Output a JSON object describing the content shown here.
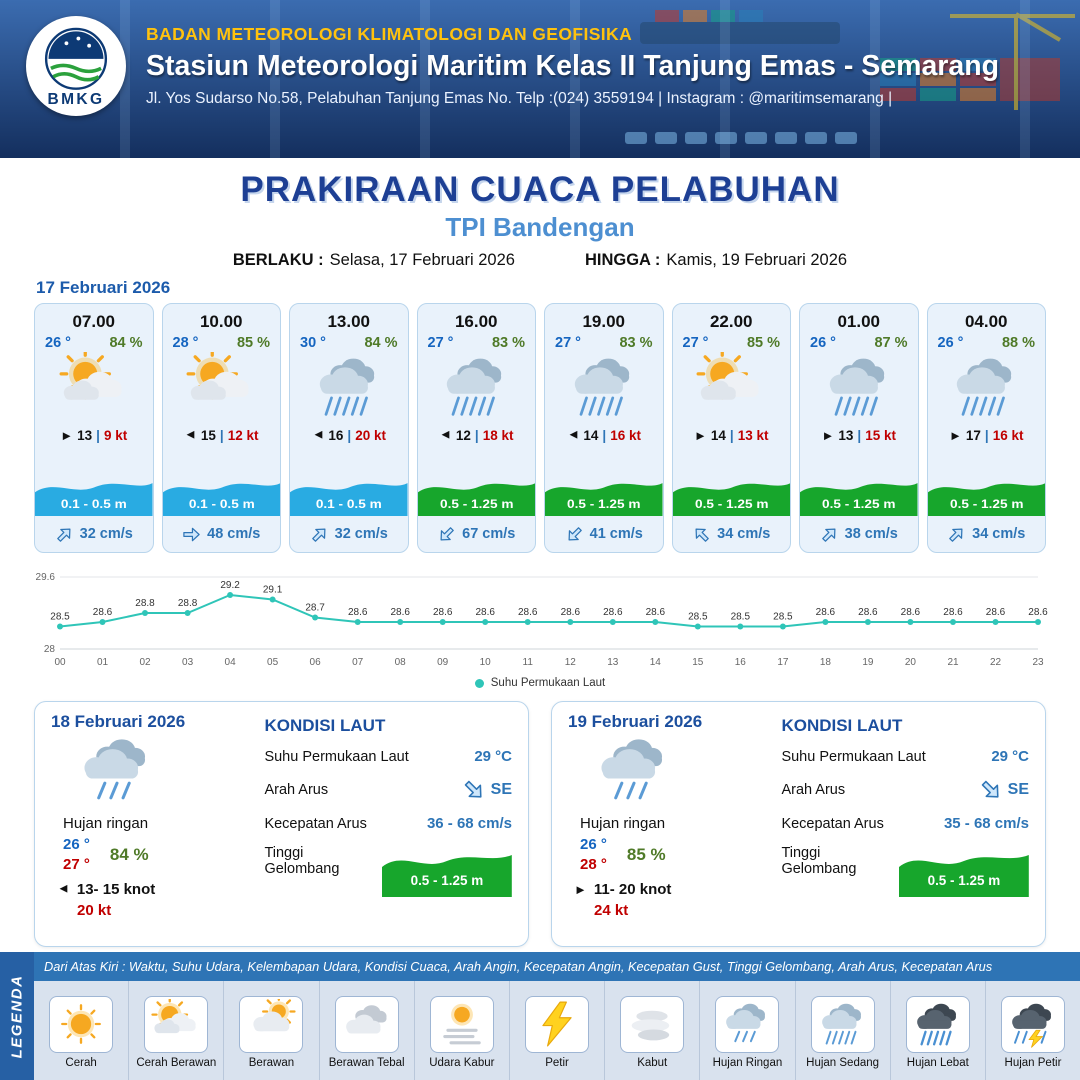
{
  "header": {
    "logo_text": "BMKG",
    "agency": "BADAN METEOROLOGI KLIMATOLOGI DAN GEOFISIKA",
    "station": "Stasiun Meteorologi Maritim Kelas II Tanjung Emas - Semarang",
    "address": "Jl. Yos Sudarso No.58, Pelabuhan Tanjung Emas No. Telp :(024) 3559194 | Instagram : @maritimsemarang |"
  },
  "title": {
    "main": "PRAKIRAAN CUACA PELABUHAN",
    "location": "TPI Bandengan",
    "berlaku_label": "BERLAKU :",
    "berlaku_value": "Selasa, 17 Februari 2026",
    "hingga_label": "HINGGA :",
    "hingga_value": "Kamis, 19 Februari 2026"
  },
  "hourly": {
    "date": "17 Februari 2026",
    "cards": [
      {
        "time": "07.00",
        "temp": "26 °",
        "humidity": "84 %",
        "icon": "cerah-berawan",
        "wind_dir": "E",
        "wind": "13",
        "gust": "9 kt",
        "wave": "0.1 - 0.5 m",
        "wave_color": "blue",
        "current_dir": "NE",
        "current": "32 cm/s"
      },
      {
        "time": "10.00",
        "temp": "28 °",
        "humidity": "85 %",
        "icon": "cerah-berawan",
        "wind_dir": "W",
        "wind": "15",
        "gust": "12 kt",
        "wave": "0.1 - 0.5 m",
        "wave_color": "blue",
        "current_dir": "E",
        "current": "48 cm/s"
      },
      {
        "time": "13.00",
        "temp": "30 °",
        "humidity": "84 %",
        "icon": "hujan-sedang",
        "wind_dir": "W",
        "wind": "16",
        "gust": "20 kt",
        "wave": "0.1 - 0.5 m",
        "wave_color": "blue",
        "current_dir": "NE",
        "current": "32 cm/s"
      },
      {
        "time": "16.00",
        "temp": "27 °",
        "humidity": "83 %",
        "icon": "hujan-sedang",
        "wind_dir": "W",
        "wind": "12",
        "gust": "18 kt",
        "wave": "0.5 - 1.25 m",
        "wave_color": "green",
        "current_dir": "SW",
        "current": "67 cm/s"
      },
      {
        "time": "19.00",
        "temp": "27 °",
        "humidity": "83 %",
        "icon": "hujan-sedang",
        "wind_dir": "W",
        "wind": "14",
        "gust": "16 kt",
        "wave": "0.5 - 1.25 m",
        "wave_color": "green",
        "current_dir": "SW",
        "current": "41 cm/s"
      },
      {
        "time": "22.00",
        "temp": "27 °",
        "humidity": "85 %",
        "icon": "cerah-berawan",
        "wind_dir": "E",
        "wind": "14",
        "gust": "13 kt",
        "wave": "0.5 - 1.25 m",
        "wave_color": "green",
        "current_dir": "NW",
        "current": "34 cm/s"
      },
      {
        "time": "01.00",
        "temp": "26 °",
        "humidity": "87 %",
        "icon": "hujan-sedang",
        "wind_dir": "E",
        "wind": "13",
        "gust": "15 kt",
        "wave": "0.5 - 1.25 m",
        "wave_color": "green",
        "current_dir": "NE",
        "current": "38 cm/s"
      },
      {
        "time": "04.00",
        "temp": "26 °",
        "humidity": "88 %",
        "icon": "hujan-sedang",
        "wind_dir": "E",
        "wind": "17",
        "gust": "16 kt",
        "wave": "0.5 - 1.25 m",
        "wave_color": "green",
        "current_dir": "NE",
        "current": "34 cm/s"
      }
    ]
  },
  "chart_data": {
    "type": "line",
    "series_name": "Suhu Permukaan Laut",
    "x": [
      "00",
      "01",
      "02",
      "03",
      "04",
      "05",
      "06",
      "07",
      "08",
      "09",
      "10",
      "11",
      "12",
      "13",
      "14",
      "15",
      "16",
      "17",
      "18",
      "19",
      "20",
      "21",
      "22",
      "23"
    ],
    "values": [
      28.5,
      28.6,
      28.8,
      28.8,
      29.2,
      29.1,
      28.7,
      28.6,
      28.6,
      28.6,
      28.6,
      28.6,
      28.6,
      28.6,
      28.6,
      28.5,
      28.5,
      28.5,
      28.6,
      28.6,
      28.6,
      28.6,
      28.6,
      28.6
    ],
    "ylim": [
      28,
      29.6
    ],
    "yticks": [
      28,
      29.6
    ],
    "grid": "minimal",
    "legend_position": "bottom"
  },
  "daily": [
    {
      "date": "18 Februari 2026",
      "icon": "hujan-ringan",
      "condition": "Hujan ringan",
      "temp_min": "26 °",
      "temp_max": "27 °",
      "humidity": "84 %",
      "wind_dir": "W",
      "wind": "13- 15 knot",
      "gust": "20 kt",
      "sea": {
        "title": "KONDISI LAUT",
        "sst_label": "Suhu Permukaan Laut",
        "sst_value": "29 °C",
        "arah_label": "Arah Arus",
        "arah_value": "SE",
        "kecepatan_label": "Kecepatan Arus",
        "kecepatan_value": "36 - 68 cm/s",
        "gelombang_label": "Tinggi Gelombang",
        "gelombang_value": "0.5 - 1.25 m"
      }
    },
    {
      "date": "19 Februari 2026",
      "icon": "hujan-ringan",
      "condition": "Hujan ringan",
      "temp_min": "26 °",
      "temp_max": "28 °",
      "humidity": "85 %",
      "wind_dir": "E",
      "wind": "11- 20 knot",
      "gust": "24 kt",
      "sea": {
        "title": "KONDISI LAUT",
        "sst_label": "Suhu Permukaan Laut",
        "sst_value": "29 °C",
        "arah_label": "Arah Arus",
        "arah_value": "SE",
        "kecepatan_label": "Kecepatan Arus",
        "kecepatan_value": "35 - 68 cm/s",
        "gelombang_label": "Tinggi Gelombang",
        "gelombang_value": "0.5 - 1.25 m"
      }
    }
  ],
  "legend": {
    "title": "LEGENDA",
    "caption": "Dari Atas Kiri : Waktu, Suhu Udara, Kelembapan Udara, Kondisi Cuaca, Arah Angin, Kecepatan Angin, Kecepatan Gust, Tinggi Gelombang, Arah Arus, Kecepatan Arus",
    "items": [
      {
        "label": "Cerah",
        "icon": "cerah"
      },
      {
        "label": "Cerah Berawan",
        "icon": "cerah-berawan"
      },
      {
        "label": "Berawan",
        "icon": "berawan"
      },
      {
        "label": "Berawan Tebal",
        "icon": "berawan-tebal"
      },
      {
        "label": "Udara Kabur",
        "icon": "udara-kabur"
      },
      {
        "label": "Petir",
        "icon": "petir"
      },
      {
        "label": "Kabut",
        "icon": "kabut"
      },
      {
        "label": "Hujan Ringan",
        "icon": "hujan-ringan"
      },
      {
        "label": "Hujan Sedang",
        "icon": "hujan-sedang"
      },
      {
        "label": "Hujan Lebat",
        "icon": "hujan-lebat"
      },
      {
        "label": "Hujan Petir",
        "icon": "hujan-petir"
      }
    ]
  },
  "colors": {
    "header_navy": "#1b3e77",
    "agency_gold": "#ffc20e",
    "title_blue": "#1d3f94",
    "location_blue": "#4d8fd1",
    "temp_blue": "#1565c0",
    "temp_max_red": "#c00000",
    "humidity_green": "#4f7a28",
    "gust_red": "#c00000",
    "wave_blue": "#29abe2",
    "wave_green": "#17a62c",
    "current_blue": "#2e75b6",
    "chart_line": "#2fc5b8",
    "legend_bar_blue": "#2e74b5",
    "legend_strip_blue": "#2660a4",
    "legend_bg": "#d9e2ee"
  }
}
